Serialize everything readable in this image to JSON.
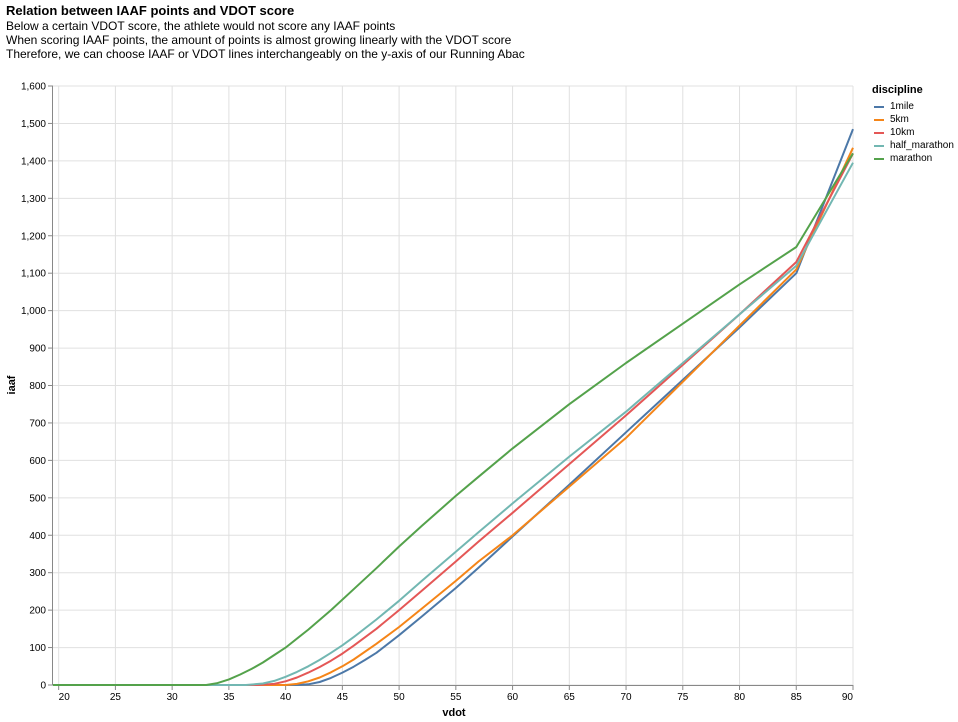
{
  "chart_data": {
    "type": "line",
    "title": "Relation between IAAF points and VDOT score",
    "subtitle": [
      "Below a certain VDOT score, the athlete would not score any IAAF points",
      "When scoring IAAF points, the amount of points is almost growing linearly with the VDOT score",
      "Therefore, we can choose IAAF or VDOT lines interchangeably on the y-axis of our Running Abac"
    ],
    "xlabel": "vdot",
    "ylabel": "iaaf",
    "xlim": [
      19.5,
      90
    ],
    "ylim": [
      0,
      1600
    ],
    "x_ticks": [
      20,
      25,
      30,
      35,
      40,
      45,
      50,
      55,
      60,
      65,
      70,
      75,
      80,
      85,
      90
    ],
    "y_ticks": [
      0,
      100,
      200,
      300,
      400,
      500,
      600,
      700,
      800,
      900,
      1000,
      1100,
      1200,
      1300,
      1400,
      1500,
      1600
    ],
    "y_tick_labels": [
      "0",
      "100",
      "200",
      "300",
      "400",
      "500",
      "600",
      "700",
      "800",
      "900",
      "1,000",
      "1,100",
      "1,200",
      "1,300",
      "1,400",
      "1,500",
      "1,600"
    ],
    "grid": true,
    "legend": {
      "title": "discipline",
      "position": "right"
    },
    "series": [
      {
        "name": "1mile",
        "color": "#4c78a8",
        "x": [
          19.5,
          40,
          41,
          42,
          43,
          44,
          45,
          46,
          47,
          48,
          50,
          52,
          55,
          57,
          60,
          65,
          70,
          75,
          80,
          85,
          90
        ],
        "y": [
          0,
          0,
          0,
          2,
          8,
          19,
          33,
          49,
          67,
          86,
          133,
          183,
          259,
          313,
          397,
          535,
          675,
          815,
          955,
          1100,
          1485
        ]
      },
      {
        "name": "5km",
        "color": "#f58518",
        "x": [
          19.5,
          39,
          40,
          41,
          42,
          43,
          44,
          45,
          46,
          48,
          50,
          52,
          55,
          57,
          60,
          65,
          70,
          75,
          80,
          85,
          90
        ],
        "y": [
          0,
          0,
          0,
          3,
          10,
          20,
          34,
          50,
          68,
          110,
          155,
          204,
          278,
          330,
          400,
          530,
          660,
          810,
          960,
          1110,
          1435
        ]
      },
      {
        "name": "10km",
        "color": "#e45756",
        "x": [
          19.5,
          37.5,
          39,
          40,
          41,
          42,
          43,
          44,
          45,
          46,
          48,
          50,
          52,
          55,
          57,
          60,
          65,
          70,
          75,
          80,
          85,
          90
        ],
        "y": [
          0,
          0,
          3,
          10,
          20,
          33,
          48,
          65,
          84,
          105,
          150,
          200,
          252,
          330,
          383,
          460,
          590,
          720,
          855,
          990,
          1130,
          1420
        ]
      },
      {
        "name": "half_marathon",
        "color": "#72b7b2",
        "x": [
          19.5,
          36.5,
          38,
          39,
          40,
          41,
          42,
          43,
          44,
          45,
          46,
          48,
          50,
          52,
          55,
          57,
          60,
          65,
          70,
          75,
          80,
          85,
          90
        ],
        "y": [
          0,
          0,
          4,
          11,
          22,
          35,
          50,
          67,
          86,
          106,
          128,
          175,
          225,
          278,
          356,
          408,
          485,
          610,
          730,
          860,
          990,
          1120,
          1395
        ]
      },
      {
        "name": "marathon",
        "color": "#54a24b",
        "x": [
          19.5,
          33,
          34,
          35,
          36,
          37,
          38,
          39,
          40,
          42,
          44,
          46,
          48,
          50,
          52,
          55,
          57,
          60,
          65,
          70,
          75,
          80,
          85,
          90
        ],
        "y": [
          0,
          0,
          5,
          15,
          28,
          43,
          60,
          80,
          100,
          148,
          200,
          256,
          312,
          370,
          425,
          505,
          556,
          632,
          750,
          860,
          965,
          1070,
          1170,
          1420
        ]
      }
    ]
  }
}
